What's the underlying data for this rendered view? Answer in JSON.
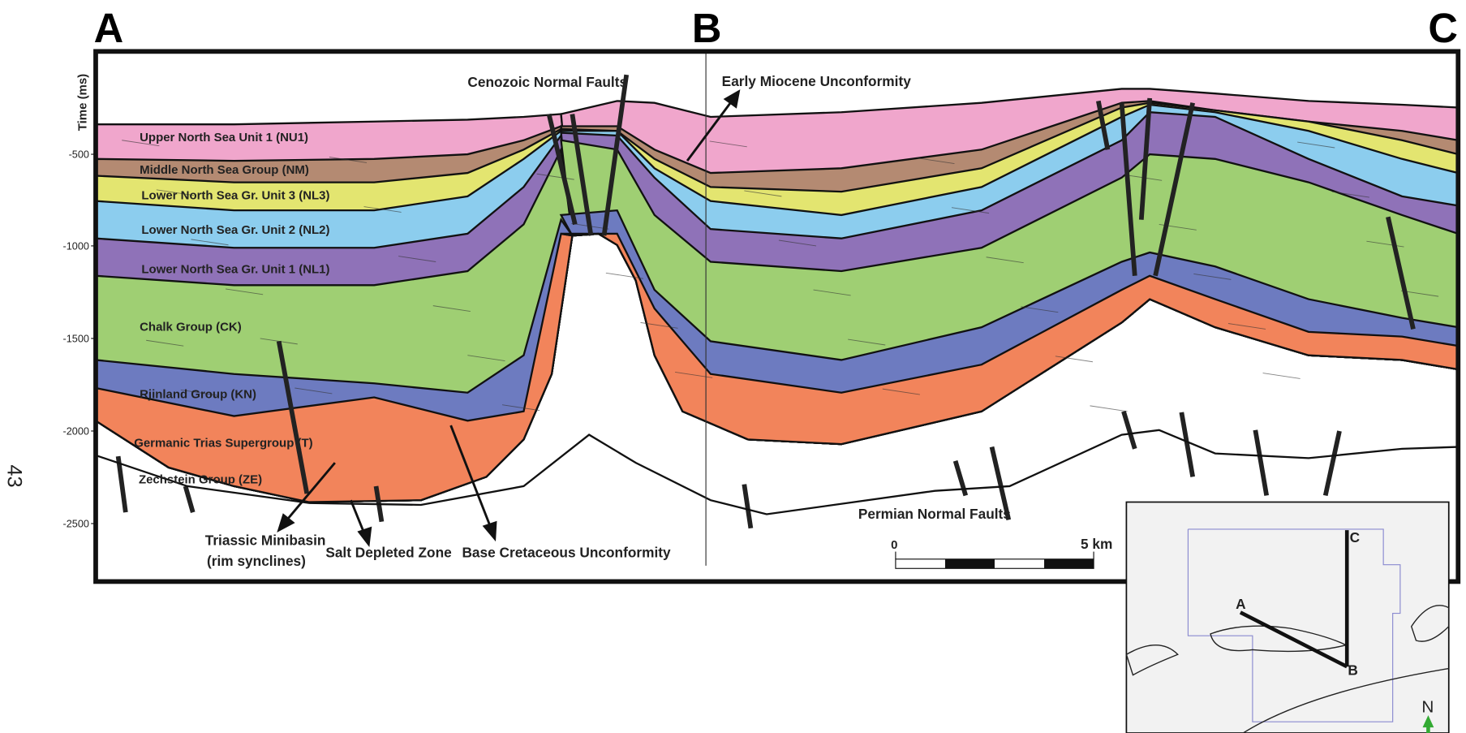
{
  "section_labels": [
    "A",
    "B",
    "C"
  ],
  "axis": {
    "title": "Time (ms)",
    "ticks": [
      "-500",
      "-1000",
      "-1500",
      "-2000",
      "-2500"
    ]
  },
  "layers": [
    "Upper North Sea Unit 1 (NU1)",
    "Middle North Sea Group (NM)",
    "Lower North Sea Gr. Unit 3 (NL3)",
    "Lower North Sea Gr. Unit 2 (NL2)",
    "Lower North Sea Gr. Unit 1 (NL1)",
    "Chalk Group (CK)",
    "Rjinland Group (KN)",
    "Germanic Trias Supergroup (T)",
    "Zechstein Group (ZE)"
  ],
  "annotations": {
    "cenozoic_faults": "Cenozoic Normal Faults",
    "miocene": "Early Miocene Unconformity",
    "minibasin": [
      "Triassic Minibasin",
      "(rim synclines)"
    ],
    "salt_depleted": "Salt Depleted Zone",
    "base_cretaceous": "Base Cretaceous Unconformity",
    "permian_faults": "Permian Normal Faults"
  },
  "scale_bar": [
    "0",
    "5 km"
  ],
  "page_number": "43",
  "inset": {
    "labels": [
      "A",
      "B",
      "C"
    ],
    "north": "N"
  }
}
